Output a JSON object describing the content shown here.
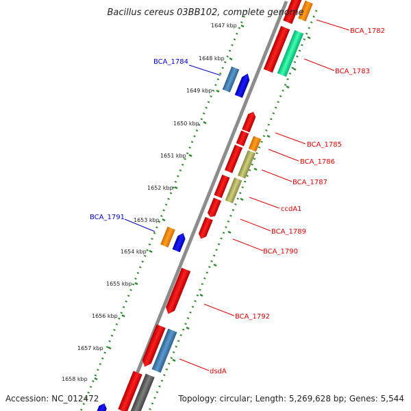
{
  "title": "Bacillus cereus 03BB102, complete genome",
  "footer": {
    "accession": "Accession: NC_012472",
    "summary": "Topology: circular; Length: 5,269,628 bp; Genes: 5,544"
  },
  "colors": {
    "backbone": "#8c8c8c",
    "tick": "#2e8b2e",
    "label_red": "#e00000",
    "label_blue": "#0000cc"
  },
  "ticks": [
    "1647 kbp",
    "1648 kbp",
    "1649 kbp",
    "1650 kbp",
    "1651 kbp",
    "1652 kbp",
    "1653 kbp",
    "1654 kbp",
    "1655 kbp",
    "1656 kbp",
    "1657 kbp",
    "1658 kbp"
  ],
  "labels": [
    {
      "text": "BCA_1782",
      "color": "red"
    },
    {
      "text": "BCA_1783",
      "color": "red"
    },
    {
      "text": "BCA_1784",
      "color": "blue"
    },
    {
      "text": "BCA_1785",
      "color": "red"
    },
    {
      "text": "BCA_1786",
      "color": "red"
    },
    {
      "text": "BCA_1787",
      "color": "red"
    },
    {
      "text": "ccdA1",
      "color": "red"
    },
    {
      "text": "BCA_1789",
      "color": "red"
    },
    {
      "text": "BCA_1790",
      "color": "red"
    },
    {
      "text": "BCA_1791",
      "color": "blue"
    },
    {
      "text": "BCA_1792",
      "color": "red"
    },
    {
      "text": "dsdA",
      "color": "red"
    }
  ]
}
